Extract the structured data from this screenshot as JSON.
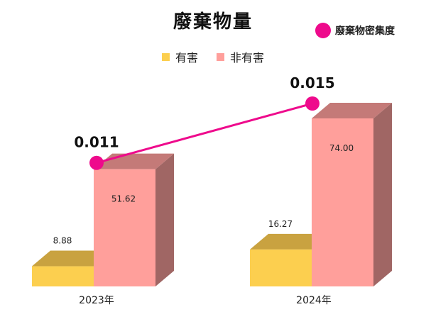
{
  "chart_data": {
    "type": "bar",
    "title": "廢棄物量",
    "categories": [
      "2023年",
      "2024年"
    ],
    "series": [
      {
        "name": "有害",
        "values": [
          8.88,
          16.27
        ],
        "labels": [
          "8.88",
          "16.27"
        ],
        "color": "#FCCF4F",
        "shade": "#C9A240",
        "side": "#A58233"
      },
      {
        "name": "非有害",
        "values": [
          51.62,
          74.0
        ],
        "labels": [
          "51.62",
          "74.00"
        ],
        "color": "#FF9F9B",
        "shade": "#C47A78",
        "side": "#A06664"
      }
    ],
    "line_series": {
      "name": "廢棄物密集度",
      "values": [
        0.011,
        0.015
      ],
      "labels": [
        "0.011",
        "0.015"
      ],
      "color": "#EE0A8C"
    },
    "ylim": [
      0,
      74.0
    ],
    "line_ylim": [
      0.0,
      0.015
    ],
    "grid": false,
    "legend_placement": "top"
  }
}
